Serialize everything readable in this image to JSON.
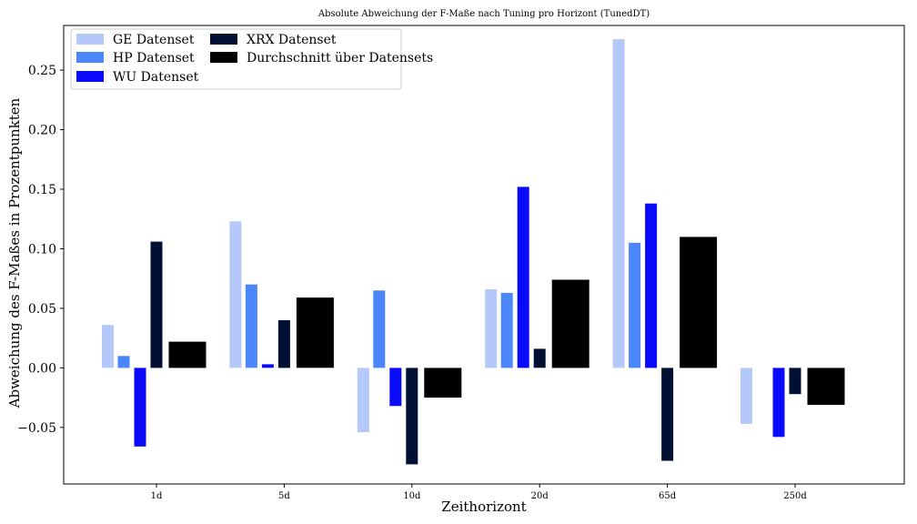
{
  "chart_data": {
    "type": "bar",
    "title": "Absolute Abweichung der F-Maße nach Tuning pro Horizont (TunedDT)",
    "xlabel": "Zeithorizont",
    "ylabel": "Abweichung des F-Maßes in Prozentpunkten",
    "categories": [
      "1d",
      "5d",
      "10d",
      "20d",
      "65d",
      "250d"
    ],
    "ylim": [
      -0.0975,
      0.2875
    ],
    "yticks": [
      -0.05,
      0.0,
      0.05,
      0.1,
      0.15,
      0.2,
      0.25
    ],
    "ytick_labels": [
      "−0.05",
      "0.00",
      "0.05",
      "0.10",
      "0.15",
      "0.20",
      "0.25"
    ],
    "grid": false,
    "legend_position": "top-left",
    "series": [
      {
        "name": "GE Datenset",
        "color": "#b4c8fa",
        "values": [
          0.036,
          0.123,
          -0.054,
          0.066,
          0.276,
          -0.047
        ]
      },
      {
        "name": "HP Datenset",
        "color": "#4b87f8",
        "values": [
          0.01,
          0.07,
          0.065,
          0.063,
          0.105,
          null
        ]
      },
      {
        "name": "WU Datenset",
        "color": "#0a0afa",
        "values": [
          -0.066,
          0.003,
          -0.032,
          0.152,
          0.138,
          -0.058
        ]
      },
      {
        "name": "XRX Datenset",
        "color": "#001032",
        "values": [
          0.106,
          0.04,
          -0.081,
          0.016,
          -0.078,
          -0.022
        ]
      },
      {
        "name": "Durchschnitt über Datensets",
        "color": "#000000",
        "values": [
          0.022,
          0.059,
          -0.025,
          0.074,
          0.11,
          -0.031
        ]
      }
    ]
  }
}
